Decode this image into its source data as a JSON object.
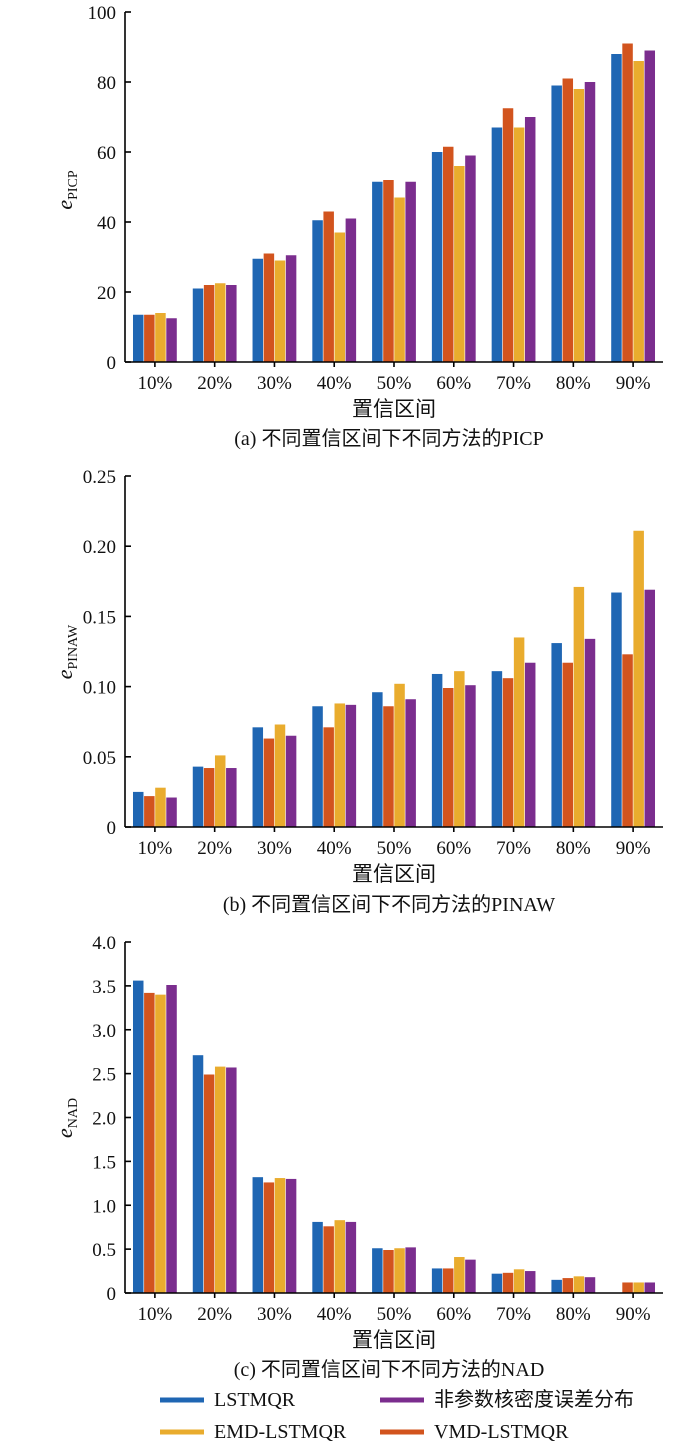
{
  "colors": {
    "LSTMQR": "#1f66b3",
    "VMD-LSTMQR": "#d2541e",
    "EMD-LSTMQR": "#e9ac2e",
    "nonparam": "#7b2d8e"
  },
  "legend": [
    {
      "key": "LSTMQR",
      "label": "LSTMQR"
    },
    {
      "key": "nonparam",
      "label": "非参数核密度误差分布"
    },
    {
      "key": "EMD-LSTMQR",
      "label": "EMD-LSTMQR"
    },
    {
      "key": "VMD-LSTMQR",
      "label": "VMD-LSTMQR"
    }
  ],
  "chart_data": [
    {
      "type": "bar",
      "ylabel_main": "e",
      "ylabel_sub": "PICP",
      "xlabel": "置信区间",
      "caption": "(a)  不同置信区间下不同方法的PICP",
      "categories": [
        "10%",
        "20%",
        "30%",
        "40%",
        "50%",
        "60%",
        "70%",
        "80%",
        "90%"
      ],
      "ylim": [
        0,
        100
      ],
      "yticks": [
        0,
        20,
        40,
        60,
        80,
        100
      ],
      "ytick_labels": [
        "0",
        "20",
        "40",
        "60",
        "80",
        "100"
      ],
      "series": [
        {
          "key": "LSTMQR",
          "values": [
            13.5,
            21,
            29.5,
            40.5,
            51.5,
            60,
            67,
            79,
            88
          ]
        },
        {
          "key": "VMD-LSTMQR",
          "values": [
            13.5,
            22,
            31,
            43,
            52,
            61.5,
            72.5,
            81,
            91
          ]
        },
        {
          "key": "EMD-LSTMQR",
          "values": [
            14,
            22.5,
            29,
            37,
            47,
            56,
            67,
            78,
            86
          ]
        },
        {
          "key": "nonparam",
          "values": [
            12.5,
            22,
            30.5,
            41,
            51.5,
            59,
            70,
            80,
            89
          ]
        }
      ]
    },
    {
      "type": "bar",
      "ylabel_main": "e",
      "ylabel_sub": "PINAW",
      "xlabel": "置信区间",
      "caption": "(b)  不同置信区间下不同方法的PINAW",
      "categories": [
        "10%",
        "20%",
        "30%",
        "40%",
        "50%",
        "60%",
        "70%",
        "80%",
        "90%"
      ],
      "ylim": [
        0,
        0.25
      ],
      "yticks": [
        0,
        0.05,
        0.1,
        0.15,
        0.2,
        0.25
      ],
      "ytick_labels": [
        "0",
        "0.05",
        "0.10",
        "0.15",
        "0.20",
        "0.25"
      ],
      "series": [
        {
          "key": "LSTMQR",
          "values": [
            0.025,
            0.043,
            0.071,
            0.086,
            0.096,
            0.109,
            0.111,
            0.131,
            0.167
          ]
        },
        {
          "key": "VMD-LSTMQR",
          "values": [
            0.022,
            0.042,
            0.063,
            0.071,
            0.086,
            0.099,
            0.106,
            0.117,
            0.123
          ]
        },
        {
          "key": "EMD-LSTMQR",
          "values": [
            0.028,
            0.051,
            0.073,
            0.088,
            0.102,
            0.111,
            0.135,
            0.171,
            0.211
          ]
        },
        {
          "key": "nonparam",
          "values": [
            0.021,
            0.042,
            0.065,
            0.087,
            0.091,
            0.101,
            0.117,
            0.134,
            0.169
          ]
        }
      ]
    },
    {
      "type": "bar",
      "ylabel_main": "e",
      "ylabel_sub": "NAD",
      "xlabel": "置信区间",
      "caption": "(c)  不同置信区间下不同方法的NAD",
      "categories": [
        "10%",
        "20%",
        "30%",
        "40%",
        "50%",
        "60%",
        "70%",
        "80%",
        "90%"
      ],
      "ylim": [
        0,
        4.0
      ],
      "yticks": [
        0,
        0.5,
        1.0,
        1.5,
        2.0,
        2.5,
        3.0,
        3.5,
        4.0
      ],
      "ytick_labels": [
        "0",
        "0.5",
        "1.0",
        "1.5",
        "2.0",
        "2.5",
        "3.0",
        "3.5",
        "4.0"
      ],
      "series": [
        {
          "key": "LSTMQR",
          "values": [
            3.56,
            2.71,
            1.32,
            0.81,
            0.51,
            0.28,
            0.22,
            0.15,
            0.0
          ]
        },
        {
          "key": "VMD-LSTMQR",
          "values": [
            3.42,
            2.49,
            1.26,
            0.76,
            0.49,
            0.28,
            0.23,
            0.17,
            0.12
          ]
        },
        {
          "key": "EMD-LSTMQR",
          "values": [
            3.4,
            2.58,
            1.31,
            0.83,
            0.51,
            0.41,
            0.27,
            0.19,
            0.12
          ]
        },
        {
          "key": "nonparam",
          "values": [
            3.51,
            2.57,
            1.3,
            0.81,
            0.52,
            0.38,
            0.25,
            0.18,
            0.12
          ]
        }
      ]
    }
  ]
}
